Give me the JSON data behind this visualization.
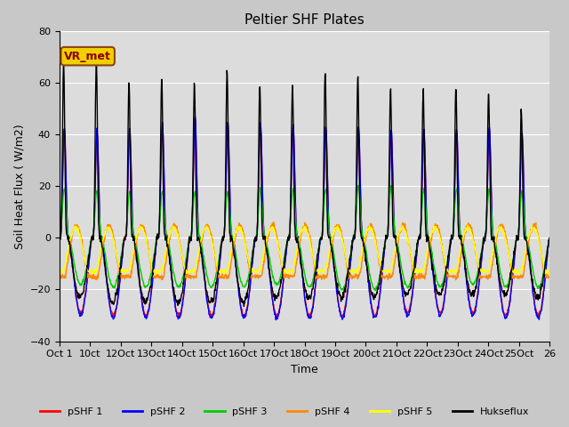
{
  "title": "Peltier SHF Plates",
  "xlabel": "Time",
  "ylabel": "Soil Heat Flux ( W/m2)",
  "ylim": [
    -40,
    80
  ],
  "annotation": "VR_met",
  "fig_facecolor": "#c8c8c8",
  "plot_facecolor": "#dcdcdc",
  "xtick_labels": [
    "Oct 1",
    "10ct",
    "12Oct",
    "13Oct",
    "14Oct",
    "15Oct",
    "16Oct",
    "17Oct",
    "18Oct",
    "19Oct",
    "200ct",
    "21Oct",
    "22Oct",
    "23Oct",
    "24Oct",
    "25Oct",
    "26"
  ],
  "series_colors": {
    "pSHF 1": "#ff0000",
    "pSHF 2": "#0000ff",
    "pSHF 3": "#00cc00",
    "pSHF 4": "#ff8800",
    "pSHF 5": "#ffff00",
    "Hukseflux": "#000000"
  },
  "legend_labels": [
    "pSHF 1",
    "pSHF 2",
    "pSHF 3",
    "pSHF 4",
    "pSHF 5",
    "Hukseflux"
  ],
  "n_cycles": 15,
  "n_points_per_cycle": 96,
  "yticks": [
    -40,
    -20,
    0,
    20,
    40,
    60,
    80
  ]
}
